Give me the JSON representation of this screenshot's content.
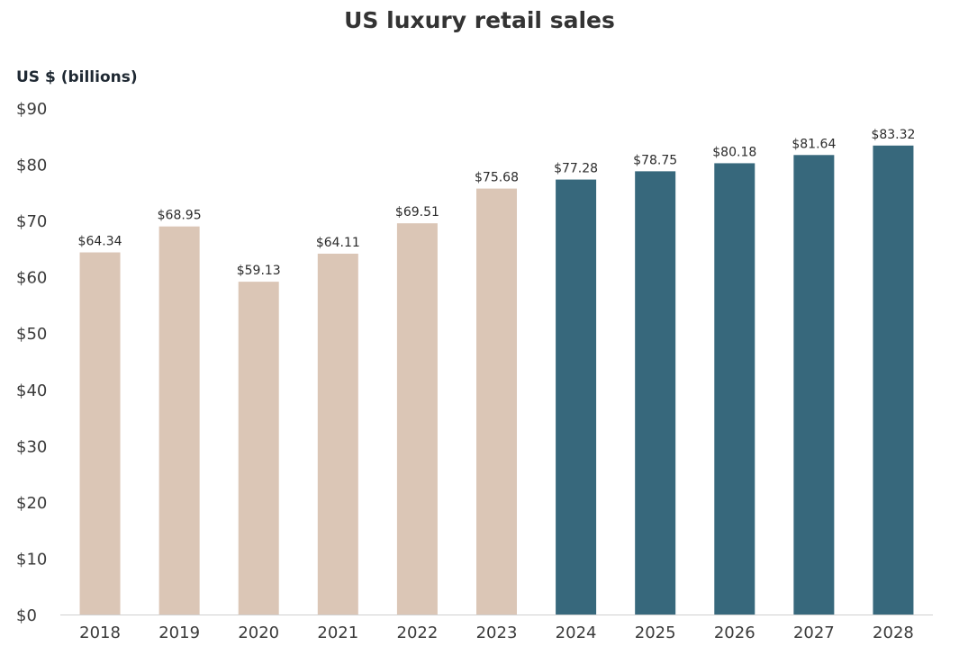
{
  "chart_data": {
    "type": "bar",
    "title": "US luxury retail sales",
    "xlabel": "",
    "ylabel": "US $ (billions)",
    "categories": [
      "2018",
      "2019",
      "2020",
      "2021",
      "2022",
      "2023",
      "2024",
      "2025",
      "2026",
      "2027",
      "2028"
    ],
    "values": [
      64.34,
      68.95,
      59.13,
      64.11,
      69.51,
      75.68,
      77.28,
      78.75,
      80.18,
      81.64,
      83.32
    ],
    "value_labels": [
      "$64.34",
      "$68.95",
      "$59.13",
      "$64.11",
      "$69.51",
      "$75.68",
      "$77.28",
      "$78.75",
      "$80.18",
      "$81.64",
      "$83.32"
    ],
    "ylim": [
      0,
      90
    ],
    "yticks": [
      0,
      10,
      20,
      30,
      40,
      50,
      60,
      70,
      80,
      90
    ],
    "ytick_labels": [
      "$0",
      "$10",
      "$20",
      "$30",
      "$40",
      "$50",
      "$60",
      "$70",
      "$80",
      "$90"
    ],
    "bar_colors": [
      "#dbc6b6",
      "#dbc6b6",
      "#dbc6b6",
      "#dbc6b6",
      "#dbc6b6",
      "#dbc6b6",
      "#37687c",
      "#37687c",
      "#37687c",
      "#37687c",
      "#37687c"
    ],
    "grid": false,
    "legend": "none"
  }
}
